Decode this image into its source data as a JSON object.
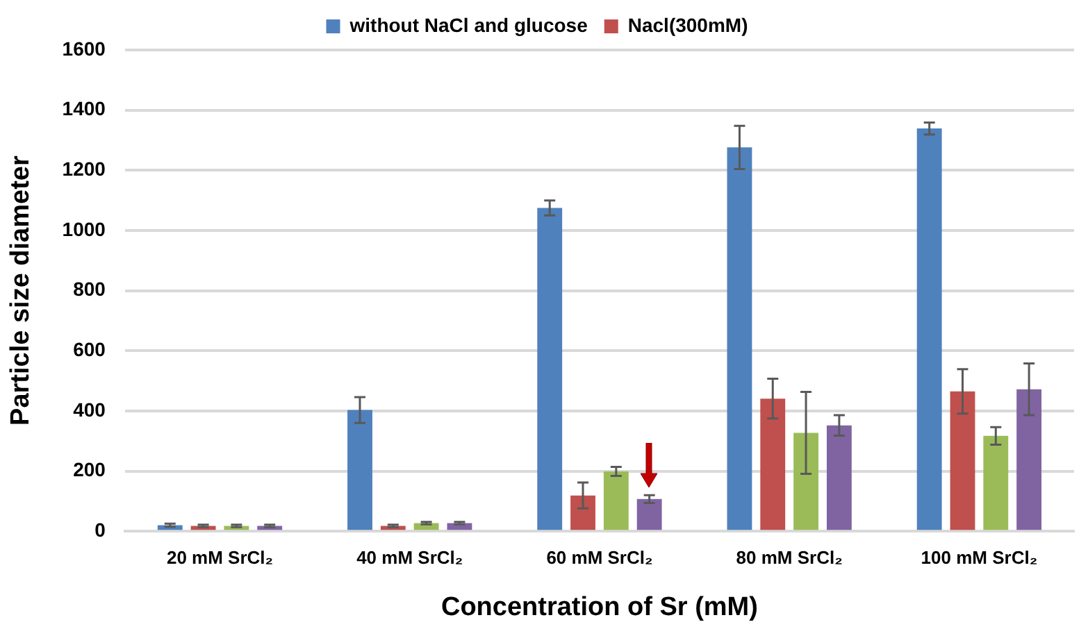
{
  "chart_data": {
    "type": "bar",
    "xlabel": "Concentration of Sr (mM)",
    "ylabel": "Particle size diameter",
    "categories": [
      "20 mM SrCl₂",
      "40 mM SrCl₂",
      "60 mM SrCl₂",
      "80 mM SrCl₂",
      "100 mM SrCl₂"
    ],
    "series": [
      {
        "name": "without NaCl and glucose",
        "color": "#4f81bd",
        "values": [
          20,
          403,
          1075,
          1276,
          1339
        ],
        "errors": [
          5,
          43,
          25,
          72,
          20
        ]
      },
      {
        "name": "Nacl(300mM)",
        "color": "#c0504d",
        "values": [
          18,
          18,
          119,
          441,
          465
        ],
        "errors": [
          4,
          4,
          43,
          66,
          74
        ]
      },
      {
        "color": "#9bbb59",
        "values": [
          18,
          27,
          199,
          327,
          317
        ],
        "errors": [
          4,
          4,
          15,
          136,
          29
        ]
      },
      {
        "color": "#8064a2",
        "values": [
          18,
          27,
          107,
          352,
          472
        ],
        "errors": [
          4,
          4,
          13,
          34,
          86
        ]
      }
    ],
    "ylim": [
      0,
      1600
    ],
    "yticks": [
      0,
      200,
      400,
      600,
      800,
      1000,
      1200,
      1400,
      1600
    ],
    "grid": "y",
    "legend": "top"
  }
}
